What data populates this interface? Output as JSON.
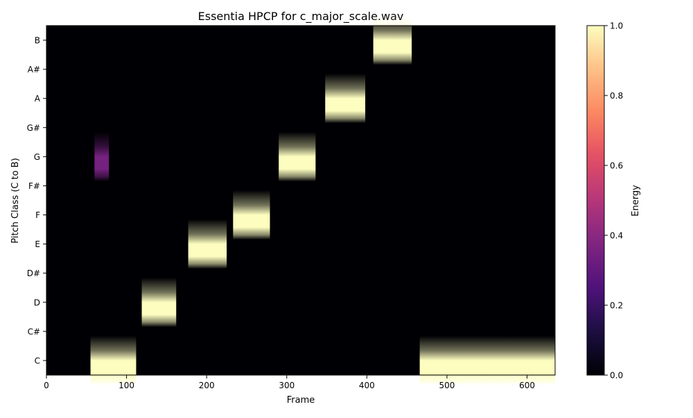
{
  "chart_data": {
    "type": "heatmap",
    "title": "Essentia HPCP for c_major_scale.wav",
    "xlabel": "Frame",
    "ylabel": "Pitch Class (C to B)",
    "xlim": [
      0,
      635
    ],
    "x_ticks": [
      0,
      100,
      200,
      300,
      400,
      500,
      600
    ],
    "y_categories": [
      "C",
      "C#",
      "D",
      "D#",
      "E",
      "F",
      "F#",
      "G",
      "G#",
      "A",
      "A#",
      "B"
    ],
    "colorbar": {
      "label": "Energy",
      "range": [
        0.0,
        1.0
      ],
      "ticks": [
        0.0,
        0.2,
        0.4,
        0.6,
        0.8,
        1.0
      ],
      "tick_labels": [
        "0.0",
        "0.2",
        "0.4",
        "0.6",
        "0.8",
        "1.0"
      ],
      "colormap": "magma"
    },
    "cells": [
      {
        "pitch": "C",
        "frame_start": 55,
        "frame_end": 112,
        "energy": 1.0
      },
      {
        "pitch": "G",
        "frame_start": 60,
        "frame_end": 78,
        "energy": 0.35
      },
      {
        "pitch": "D",
        "frame_start": 119,
        "frame_end": 162,
        "energy": 1.0
      },
      {
        "pitch": "E",
        "frame_start": 177,
        "frame_end": 225,
        "energy": 1.0
      },
      {
        "pitch": "F",
        "frame_start": 233,
        "frame_end": 279,
        "energy": 1.0
      },
      {
        "pitch": "G",
        "frame_start": 290,
        "frame_end": 336,
        "energy": 1.0
      },
      {
        "pitch": "A",
        "frame_start": 348,
        "frame_end": 398,
        "energy": 1.0
      },
      {
        "pitch": "B",
        "frame_start": 408,
        "frame_end": 456,
        "energy": 1.0
      },
      {
        "pitch": "C",
        "frame_start": 466,
        "frame_end": 635,
        "energy": 1.0
      }
    ]
  }
}
